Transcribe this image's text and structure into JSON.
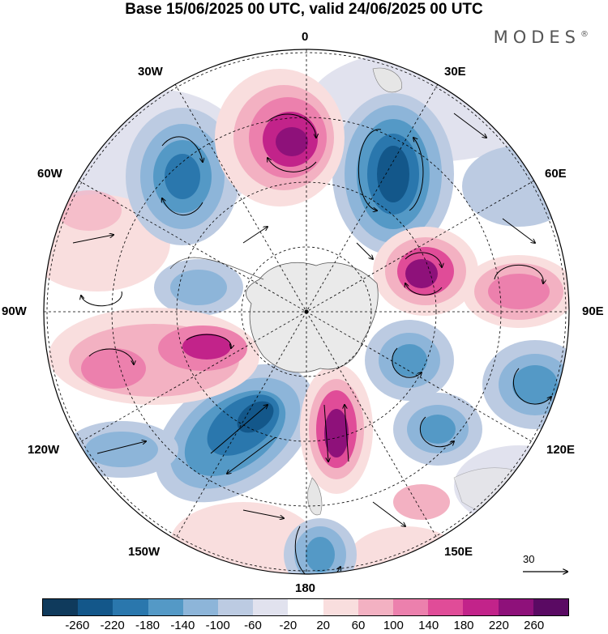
{
  "title": "Base 15/06/2025 00 UTC, valid 24/06/2025 00 UTC",
  "brand": "MODES",
  "brand_mark": "®",
  "longitude_labels": {
    "top": "0",
    "top_left": "30W",
    "top_right": "30E",
    "upper_left": "60W",
    "upper_right": "60E",
    "left": "90W",
    "right": "90E",
    "lower_left": "120W",
    "lower_right": "120E",
    "bottom_left": "150W",
    "bottom_right": "150E",
    "bottom": "180"
  },
  "reference_vector": {
    "label": "30"
  },
  "colorbar": {
    "ticks": [
      "-260",
      "-220",
      "-180",
      "-140",
      "-100",
      "-60",
      "-20",
      "20",
      "60",
      "100",
      "140",
      "180",
      "220",
      "260"
    ],
    "colors": [
      "#0f3a5c",
      "#13578a",
      "#2a77ad",
      "#5499c6",
      "#8db5d9",
      "#bccbe2",
      "#e1e2ee",
      "#ffffff",
      "#f9dede",
      "#f3b1c2",
      "#ec80ad",
      "#e04c98",
      "#c2238a",
      "#8e117a",
      "#5a0a63"
    ]
  },
  "map_colors": {
    "land": "#e6e6e6",
    "pole_ice": "#eaeaea"
  }
}
